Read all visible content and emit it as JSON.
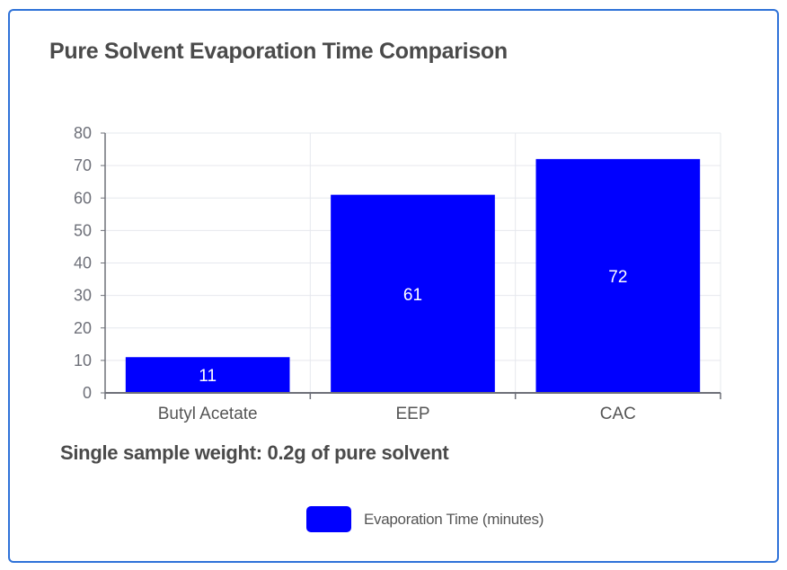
{
  "chart_data": {
    "type": "bar",
    "title": "Pure Solvent Evaporation Time Comparison",
    "subtitle": "Single sample weight: 0.2g of pure solvent",
    "categories": [
      "Butyl Acetate",
      "EEP",
      "CAC"
    ],
    "series": [
      {
        "name": "Evaporation Time (minutes)",
        "values": [
          11,
          61,
          72
        ],
        "color": "#0000ff"
      }
    ],
    "ylim": [
      0,
      80
    ],
    "yticks": [
      0,
      10,
      20,
      30,
      40,
      50,
      60,
      70,
      80
    ],
    "xlabel": "",
    "ylabel": "",
    "grid": true,
    "legend_position": "bottom-center",
    "colors": {
      "axis": "#6e7079",
      "grid": "#e6e8ee",
      "tick_label": "#6e7079",
      "data_label": "#ffffff"
    }
  }
}
